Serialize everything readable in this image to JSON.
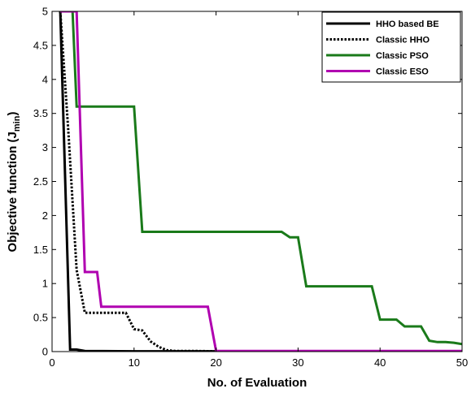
{
  "chart_data": {
    "type": "line",
    "title": "",
    "xlabel": "No. of Evaluation",
    "ylabel": "Objective function (J",
    "ylabel_sub": "min",
    "ylabel_close": ")",
    "xlim": [
      0,
      50
    ],
    "ylim": [
      0,
      5
    ],
    "xticks": [
      0,
      10,
      20,
      30,
      40,
      50
    ],
    "yticks": [
      0,
      0.5,
      1,
      1.5,
      2,
      2.5,
      3,
      3.5,
      4,
      4.5,
      5
    ],
    "ytick_labels": [
      "0",
      "0.5",
      "1",
      "1.5",
      "2",
      "2.5",
      "3",
      "3.5",
      "4",
      "4.5",
      "5"
    ],
    "grid": false,
    "legend_position": "top-right",
    "series": [
      {
        "name": "HHO based BE",
        "color": "#000000",
        "style": "solid",
        "x": [
          1,
          2.2,
          3,
          4,
          10,
          20,
          30,
          40,
          50
        ],
        "y": [
          5,
          0.03,
          0.03,
          0.01,
          0.005,
          0.005,
          0.005,
          0.005,
          0.005
        ]
      },
      {
        "name": "Classic HHO",
        "color": "#000000",
        "style": "dotted",
        "x": [
          1,
          2,
          3,
          4,
          5,
          9,
          10,
          11,
          12,
          13,
          14,
          15,
          17,
          20,
          50
        ],
        "y": [
          5,
          3.2,
          1.2,
          0.57,
          0.57,
          0.57,
          0.33,
          0.31,
          0.15,
          0.07,
          0.02,
          0.01,
          0.01,
          0.005,
          0.005
        ]
      },
      {
        "name": "Classic PSO",
        "color": "#1a7a1a",
        "style": "solid",
        "x": [
          1,
          2.5,
          3,
          10,
          11,
          28,
          29,
          30,
          31,
          39,
          40,
          42,
          43,
          45,
          46,
          47,
          48,
          49,
          50
        ],
        "y": [
          5,
          5,
          3.6,
          3.6,
          1.76,
          1.76,
          1.68,
          1.68,
          0.96,
          0.96,
          0.47,
          0.47,
          0.37,
          0.37,
          0.16,
          0.14,
          0.14,
          0.13,
          0.11
        ]
      },
      {
        "name": "Classic ESO",
        "color": "#b000b0",
        "style": "solid",
        "x": [
          1,
          3,
          4,
          5,
          5.5,
          6,
          19,
          20,
          50
        ],
        "y": [
          5,
          5,
          1.17,
          1.17,
          1.17,
          0.66,
          0.66,
          0.01,
          0.01
        ]
      }
    ]
  }
}
